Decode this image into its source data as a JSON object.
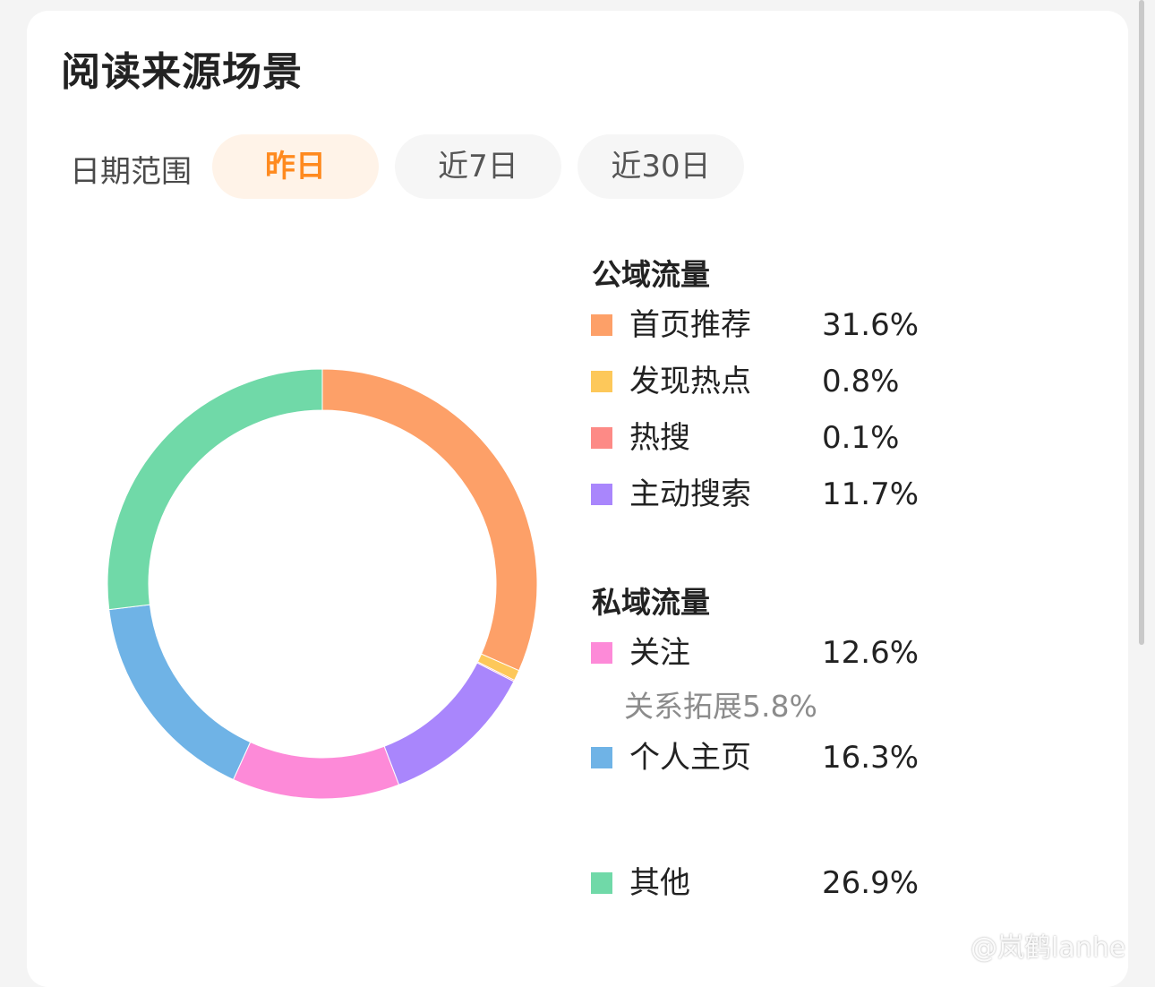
{
  "title": "阅读来源场景",
  "date_range": {
    "label": "日期范围",
    "options": [
      "昨日",
      "近7日",
      "近30日"
    ],
    "selected": "昨日"
  },
  "colors": {
    "accent": "#ff8a1f",
    "accent_bg": "#fff3e8"
  },
  "legend": {
    "public_title": "公域流量",
    "private_title": "私域流量",
    "sub_note": "关系拓展5.8%"
  },
  "watermark": "@岚鹤lanhe",
  "chart_data": {
    "type": "pie",
    "donut": true,
    "title": "阅读来源场景",
    "slices": [
      {
        "label": "首页推荐",
        "value": 31.6,
        "display": "31.6%",
        "color": "#fda068",
        "group": "公域流量"
      },
      {
        "label": "发现热点",
        "value": 0.8,
        "display": "0.8%",
        "color": "#fdc85a",
        "group": "公域流量"
      },
      {
        "label": "热搜",
        "value": 0.1,
        "display": "0.1%",
        "color": "#fd8a86",
        "group": "公域流量"
      },
      {
        "label": "主动搜索",
        "value": 11.7,
        "display": "11.7%",
        "color": "#a986fc",
        "group": "公域流量"
      },
      {
        "label": "关注",
        "value": 12.6,
        "display": "12.6%",
        "color": "#fd8ad8",
        "group": "私域流量"
      },
      {
        "label": "个人主页",
        "value": 16.3,
        "display": "16.3%",
        "color": "#6fb3e6",
        "group": "私域流量"
      },
      {
        "label": "其他",
        "value": 26.9,
        "display": "26.9%",
        "color": "#70d9a8",
        "group": ""
      }
    ]
  }
}
